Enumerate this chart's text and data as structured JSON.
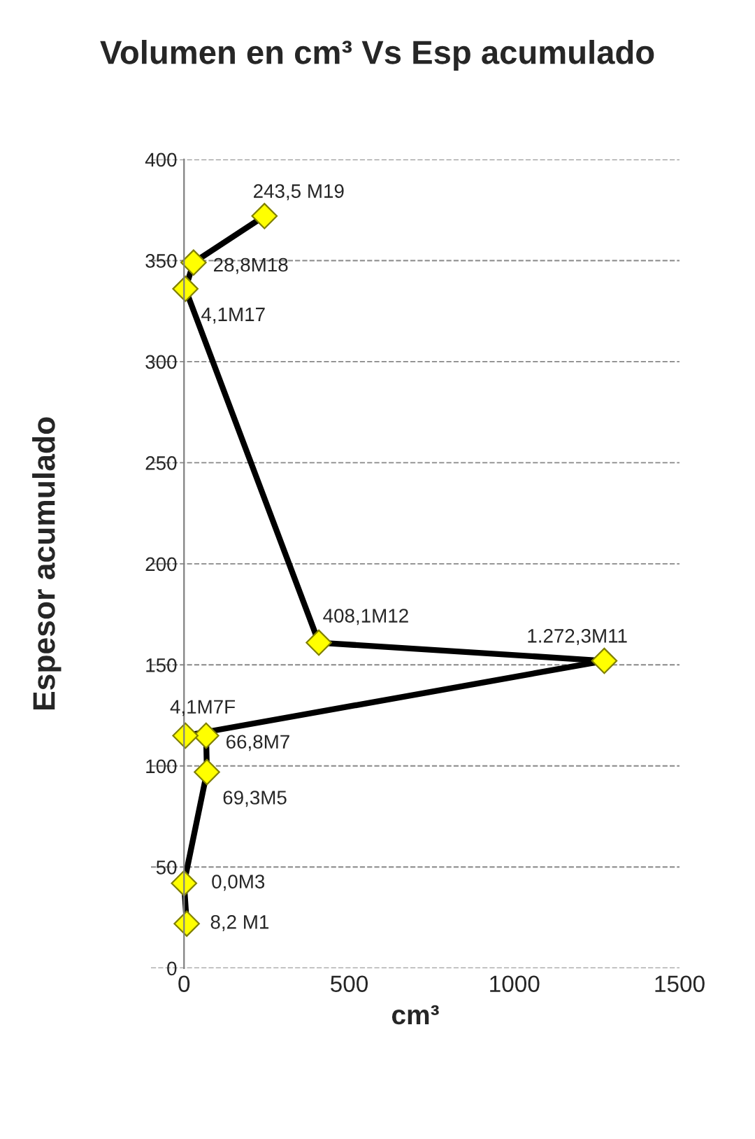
{
  "chart_data": {
    "type": "line",
    "title": "Volumen en cm³ Vs Esp acumulado",
    "xlabel": "cm³",
    "ylabel": "Espesor acumulado",
    "x": [
      8.2,
      0.0,
      69.3,
      66.8,
      4.1,
      1272.3,
      408.1,
      4.1,
      28.8,
      243.5
    ],
    "series": [
      {
        "color": "#000000",
        "values": [
          22,
          42,
          97,
          115,
          115,
          152,
          161,
          336,
          349,
          372
        ]
      }
    ],
    "annotations": [
      {
        "text": "8,2 M1",
        "x": 8.2,
        "y": 22
      },
      {
        "text": "0,0M3",
        "x": 0.0,
        "y": 42
      },
      {
        "text": "69,3M5",
        "x": 69.3,
        "y": 97
      },
      {
        "text": "66,8M7",
        "x": 66.8,
        "y": 115
      },
      {
        "text": "4,1M7F",
        "x": 4.1,
        "y": 115
      },
      {
        "text": "1.272,3M11",
        "x": 1272.3,
        "y": 152
      },
      {
        "text": "408,1M12",
        "x": 408.1,
        "y": 161
      },
      {
        "text": "4,1M17",
        "x": 4.1,
        "y": 336
      },
      {
        "text": "28,8M18",
        "x": 28.8,
        "y": 349
      },
      {
        "text": "243,5 M19",
        "x": 243.5,
        "y": 372
      }
    ],
    "marker": "diamond",
    "xlim": [
      -100,
      1500
    ],
    "xticks": [
      0,
      500,
      1000,
      1500
    ],
    "ylim": [
      0,
      400
    ],
    "yticks": [
      0,
      50,
      100,
      150,
      200,
      250,
      300,
      350,
      400
    ],
    "grid": "y",
    "legend": false
  }
}
